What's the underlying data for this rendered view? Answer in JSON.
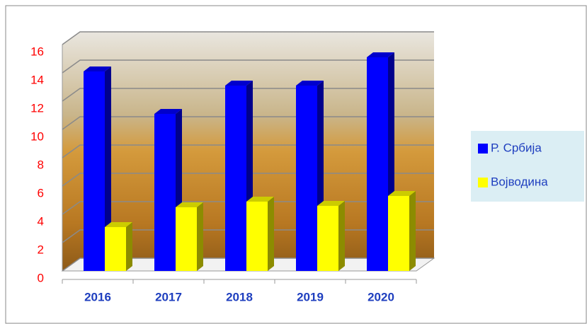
{
  "chart_data": {
    "type": "bar3d",
    "categories": [
      "2016",
      "2017",
      "2018",
      "2019",
      "2020"
    ],
    "series": [
      {
        "name": "Р. Србија",
        "color": "#0000ff",
        "values": [
          14.1,
          11.1,
          13.1,
          13.1,
          15.1
        ]
      },
      {
        "name": "Војводина",
        "color": "#ffff00",
        "values": [
          3.1,
          4.5,
          4.9,
          4.6,
          5.3
        ]
      }
    ],
    "ylim": [
      0,
      16
    ],
    "yticks": [
      0,
      2,
      4,
      6,
      8,
      10,
      12,
      14,
      16
    ],
    "grid": true,
    "legend": "right"
  }
}
